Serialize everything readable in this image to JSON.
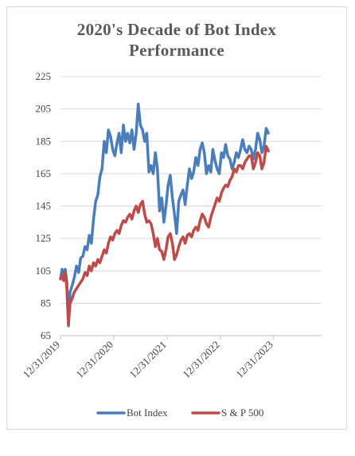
{
  "chart_data": {
    "type": "line",
    "title_line1": "2020's Decade of Bot Index",
    "title_line2": "Performance",
    "xlabel": "",
    "ylabel": "",
    "ylim": [
      65,
      225
    ],
    "yticks": [
      65,
      85,
      105,
      125,
      145,
      165,
      185,
      205,
      225
    ],
    "xticks": [
      "12/31/2019",
      "12/31/2020",
      "12/31/2021",
      "12/31/2022",
      "12/31/2023"
    ],
    "grid": "horizontal",
    "legend_position": "bottom",
    "x_range": [
      2020.0,
      2024.9
    ],
    "series": [
      {
        "name": "Bot Index",
        "color": "#4a7ebb",
        "points": [
          [
            2020.0,
            100
          ],
          [
            2020.03,
            106
          ],
          [
            2020.06,
            101
          ],
          [
            2020.09,
            106
          ],
          [
            2020.12,
            98
          ],
          [
            2020.15,
            71
          ],
          [
            2020.18,
            92
          ],
          [
            2020.22,
            96
          ],
          [
            2020.26,
            101
          ],
          [
            2020.3,
            108
          ],
          [
            2020.34,
            104
          ],
          [
            2020.38,
            113
          ],
          [
            2020.42,
            114
          ],
          [
            2020.46,
            120
          ],
          [
            2020.5,
            118
          ],
          [
            2020.54,
            127
          ],
          [
            2020.58,
            122
          ],
          [
            2020.62,
            137
          ],
          [
            2020.66,
            148
          ],
          [
            2020.7,
            152
          ],
          [
            2020.74,
            163
          ],
          [
            2020.78,
            168
          ],
          [
            2020.82,
            185
          ],
          [
            2020.86,
            178
          ],
          [
            2020.9,
            192
          ],
          [
            2020.94,
            188
          ],
          [
            2020.98,
            180
          ],
          [
            2021.02,
            176
          ],
          [
            2021.06,
            184
          ],
          [
            2021.1,
            190
          ],
          [
            2021.14,
            178
          ],
          [
            2021.18,
            195
          ],
          [
            2021.22,
            185
          ],
          [
            2021.26,
            190
          ],
          [
            2021.3,
            184
          ],
          [
            2021.34,
            192
          ],
          [
            2021.38,
            180
          ],
          [
            2021.42,
            190
          ],
          [
            2021.46,
            208
          ],
          [
            2021.5,
            195
          ],
          [
            2021.54,
            192
          ],
          [
            2021.58,
            185
          ],
          [
            2021.62,
            190
          ],
          [
            2021.66,
            166
          ],
          [
            2021.7,
            170
          ],
          [
            2021.74,
            165
          ],
          [
            2021.78,
            178
          ],
          [
            2021.82,
            168
          ],
          [
            2021.86,
            142
          ],
          [
            2021.9,
            150
          ],
          [
            2021.94,
            135
          ],
          [
            2021.98,
            145
          ],
          [
            2022.02,
            158
          ],
          [
            2022.06,
            164
          ],
          [
            2022.1,
            150
          ],
          [
            2022.14,
            140
          ],
          [
            2022.18,
            128
          ],
          [
            2022.22,
            148
          ],
          [
            2022.26,
            152
          ],
          [
            2022.3,
            155
          ],
          [
            2022.34,
            146
          ],
          [
            2022.38,
            158
          ],
          [
            2022.42,
            168
          ],
          [
            2022.46,
            162
          ],
          [
            2022.5,
            166
          ],
          [
            2022.54,
            175
          ],
          [
            2022.58,
            170
          ],
          [
            2022.62,
            180
          ],
          [
            2022.66,
            184
          ],
          [
            2022.7,
            178
          ],
          [
            2022.74,
            165
          ],
          [
            2022.78,
            170
          ],
          [
            2022.82,
            166
          ],
          [
            2022.86,
            180
          ],
          [
            2022.9,
            173
          ],
          [
            2022.94,
            168
          ],
          [
            2022.98,
            165
          ],
          [
            2023.02,
            178
          ],
          [
            2023.06,
            175
          ],
          [
            2023.1,
            183
          ],
          [
            2023.14,
            176
          ],
          [
            2023.18,
            174
          ],
          [
            2023.22,
            168
          ],
          [
            2023.26,
            172
          ],
          [
            2023.3,
            178
          ],
          [
            2023.34,
            175
          ],
          [
            2023.38,
            180
          ],
          [
            2023.42,
            186
          ],
          [
            2023.46,
            180
          ],
          [
            2023.5,
            178
          ],
          [
            2023.54,
            182
          ],
          [
            2023.58,
            180
          ],
          [
            2023.62,
            174
          ],
          [
            2023.66,
            180
          ],
          [
            2023.7,
            190
          ],
          [
            2023.74,
            186
          ],
          [
            2023.78,
            178
          ],
          [
            2023.82,
            182
          ],
          [
            2023.86,
            193
          ],
          [
            2023.9,
            190
          ]
        ]
      },
      {
        "name": "S & P 500",
        "color": "#be4b48",
        "points": [
          [
            2020.0,
            100
          ],
          [
            2020.03,
            102
          ],
          [
            2020.06,
            99
          ],
          [
            2020.09,
            104
          ],
          [
            2020.12,
            94
          ],
          [
            2020.15,
            72
          ],
          [
            2020.18,
            85
          ],
          [
            2020.22,
            88
          ],
          [
            2020.26,
            92
          ],
          [
            2020.3,
            94
          ],
          [
            2020.34,
            96
          ],
          [
            2020.38,
            98
          ],
          [
            2020.42,
            100
          ],
          [
            2020.46,
            104
          ],
          [
            2020.5,
            102
          ],
          [
            2020.54,
            108
          ],
          [
            2020.58,
            105
          ],
          [
            2020.62,
            110
          ],
          [
            2020.66,
            108
          ],
          [
            2020.7,
            112
          ],
          [
            2020.74,
            110
          ],
          [
            2020.78,
            114
          ],
          [
            2020.82,
            118
          ],
          [
            2020.86,
            116
          ],
          [
            2020.9,
            122
          ],
          [
            2020.94,
            126
          ],
          [
            2020.98,
            124
          ],
          [
            2021.02,
            128
          ],
          [
            2021.06,
            130
          ],
          [
            2021.1,
            128
          ],
          [
            2021.14,
            133
          ],
          [
            2021.18,
            136
          ],
          [
            2021.22,
            135
          ],
          [
            2021.26,
            138
          ],
          [
            2021.3,
            140
          ],
          [
            2021.34,
            137
          ],
          [
            2021.38,
            142
          ],
          [
            2021.42,
            145
          ],
          [
            2021.46,
            141
          ],
          [
            2021.5,
            146
          ],
          [
            2021.54,
            148
          ],
          [
            2021.58,
            140
          ],
          [
            2021.62,
            135
          ],
          [
            2021.66,
            136
          ],
          [
            2021.7,
            134
          ],
          [
            2021.74,
            128
          ],
          [
            2021.78,
            120
          ],
          [
            2021.82,
            125
          ],
          [
            2021.86,
            118
          ],
          [
            2021.9,
            117
          ],
          [
            2021.94,
            112
          ],
          [
            2021.98,
            118
          ],
          [
            2022.02,
            126
          ],
          [
            2022.06,
            128
          ],
          [
            2022.1,
            122
          ],
          [
            2022.14,
            112
          ],
          [
            2022.18,
            115
          ],
          [
            2022.22,
            120
          ],
          [
            2022.26,
            124
          ],
          [
            2022.3,
            126
          ],
          [
            2022.34,
            122
          ],
          [
            2022.38,
            127
          ],
          [
            2022.42,
            128
          ],
          [
            2022.46,
            126
          ],
          [
            2022.5,
            130
          ],
          [
            2022.54,
            132
          ],
          [
            2022.58,
            130
          ],
          [
            2022.62,
            136
          ],
          [
            2022.66,
            140
          ],
          [
            2022.7,
            138
          ],
          [
            2022.74,
            134
          ],
          [
            2022.78,
            132
          ],
          [
            2022.82,
            138
          ],
          [
            2022.86,
            142
          ],
          [
            2022.9,
            146
          ],
          [
            2022.94,
            150
          ],
          [
            2022.98,
            148
          ],
          [
            2023.02,
            153
          ],
          [
            2023.06,
            156
          ],
          [
            2023.1,
            158
          ],
          [
            2023.14,
            157
          ],
          [
            2023.18,
            161
          ],
          [
            2023.22,
            163
          ],
          [
            2023.26,
            168
          ],
          [
            2023.3,
            166
          ],
          [
            2023.34,
            170
          ],
          [
            2023.38,
            170
          ],
          [
            2023.42,
            168
          ],
          [
            2023.46,
            172
          ],
          [
            2023.5,
            174
          ],
          [
            2023.54,
            176
          ],
          [
            2023.58,
            176
          ],
          [
            2023.62,
            168
          ],
          [
            2023.66,
            172
          ],
          [
            2023.7,
            178
          ],
          [
            2023.74,
            176
          ],
          [
            2023.78,
            168
          ],
          [
            2023.82,
            172
          ],
          [
            2023.86,
            182
          ],
          [
            2023.9,
            179
          ]
        ]
      }
    ]
  }
}
